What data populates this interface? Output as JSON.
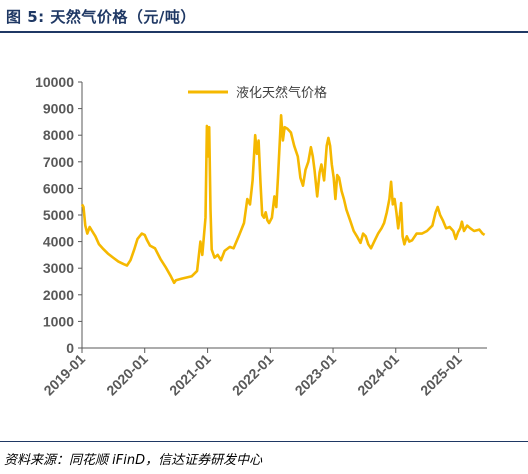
{
  "figure": {
    "title": "图 5:  天然气价格（元/吨）",
    "source": "资料来源：同花顺 iFinD，信达证券研发中心"
  },
  "chart_data": {
    "type": "line",
    "ylim": [
      0,
      10000
    ],
    "yticks": [
      0,
      1000,
      2000,
      3000,
      4000,
      5000,
      6000,
      7000,
      8000,
      9000,
      10000
    ],
    "xticks": [
      "2019-01",
      "2020-01",
      "2021-01",
      "2022-01",
      "2023-01",
      "2024-01",
      "2025-01"
    ],
    "xlim": [
      "2019-01-01",
      "2025-06-15"
    ],
    "grid": false,
    "legend_position": "top-center",
    "line_color": "#f5b800",
    "series": [
      {
        "name": "液化天然气价格",
        "points": [
          [
            "2019-01-01",
            5400
          ],
          [
            "2019-01-10",
            5300
          ],
          [
            "2019-01-20",
            4600
          ],
          [
            "2019-02-01",
            4300
          ],
          [
            "2019-02-15",
            4550
          ],
          [
            "2019-03-01",
            4400
          ],
          [
            "2019-03-20",
            4200
          ],
          [
            "2019-04-10",
            3900
          ],
          [
            "2019-05-01",
            3750
          ],
          [
            "2019-06-01",
            3550
          ],
          [
            "2019-07-01",
            3400
          ],
          [
            "2019-08-01",
            3250
          ],
          [
            "2019-09-01",
            3150
          ],
          [
            "2019-09-20",
            3100
          ],
          [
            "2019-10-10",
            3300
          ],
          [
            "2019-11-01",
            3700
          ],
          [
            "2019-11-20",
            4100
          ],
          [
            "2019-12-15",
            4300
          ],
          [
            "2020-01-01",
            4250
          ],
          [
            "2020-01-15",
            4050
          ],
          [
            "2020-02-01",
            3850
          ],
          [
            "2020-03-01",
            3750
          ],
          [
            "2020-04-01",
            3350
          ],
          [
            "2020-05-01",
            3050
          ],
          [
            "2020-06-01",
            2700
          ],
          [
            "2020-06-20",
            2450
          ],
          [
            "2020-07-01",
            2550
          ],
          [
            "2020-08-01",
            2600
          ],
          [
            "2020-09-01",
            2650
          ],
          [
            "2020-10-01",
            2700
          ],
          [
            "2020-11-01",
            2900
          ],
          [
            "2020-11-20",
            4000
          ],
          [
            "2020-12-01",
            3500
          ],
          [
            "2020-12-20",
            4900
          ],
          [
            "2020-12-28",
            8350
          ],
          [
            "2021-01-03",
            7200
          ],
          [
            "2021-01-10",
            8300
          ],
          [
            "2021-01-18",
            5200
          ],
          [
            "2021-01-25",
            3700
          ],
          [
            "2021-02-10",
            3400
          ],
          [
            "2021-03-01",
            3500
          ],
          [
            "2021-03-20",
            3300
          ],
          [
            "2021-04-10",
            3650
          ],
          [
            "2021-05-10",
            3800
          ],
          [
            "2021-06-01",
            3750
          ],
          [
            "2021-07-01",
            4200
          ],
          [
            "2021-08-01",
            4700
          ],
          [
            "2021-08-20",
            5600
          ],
          [
            "2021-09-05",
            5400
          ],
          [
            "2021-09-20",
            6300
          ],
          [
            "2021-10-05",
            8000
          ],
          [
            "2021-10-15",
            7300
          ],
          [
            "2021-10-25",
            7800
          ],
          [
            "2021-11-05",
            6200
          ],
          [
            "2021-11-15",
            5000
          ],
          [
            "2021-11-25",
            4900
          ],
          [
            "2021-12-05",
            5100
          ],
          [
            "2021-12-15",
            4800
          ],
          [
            "2021-12-25",
            4700
          ],
          [
            "2022-01-10",
            4900
          ],
          [
            "2022-01-25",
            5700
          ],
          [
            "2022-02-05",
            5300
          ],
          [
            "2022-02-15",
            6500
          ],
          [
            "2022-03-05",
            8750
          ],
          [
            "2022-03-15",
            7800
          ],
          [
            "2022-03-25",
            8300
          ],
          [
            "2022-04-10",
            8250
          ],
          [
            "2022-05-01",
            8100
          ],
          [
            "2022-05-20",
            7600
          ],
          [
            "2022-06-10",
            7200
          ],
          [
            "2022-06-25",
            6400
          ],
          [
            "2022-07-10",
            6100
          ],
          [
            "2022-07-25",
            6700
          ],
          [
            "2022-08-10",
            7000
          ],
          [
            "2022-08-25",
            7550
          ],
          [
            "2022-09-05",
            7200
          ],
          [
            "2022-09-15",
            6700
          ],
          [
            "2022-10-01",
            5700
          ],
          [
            "2022-10-15",
            6600
          ],
          [
            "2022-10-25",
            6900
          ],
          [
            "2022-11-10",
            6300
          ],
          [
            "2022-11-25",
            7600
          ],
          [
            "2022-12-05",
            7900
          ],
          [
            "2022-12-15",
            7600
          ],
          [
            "2022-12-25",
            6900
          ],
          [
            "2023-01-05",
            6400
          ],
          [
            "2023-01-15",
            5600
          ],
          [
            "2023-01-25",
            6500
          ],
          [
            "2023-02-05",
            6400
          ],
          [
            "2023-02-20",
            5900
          ],
          [
            "2023-03-05",
            5600
          ],
          [
            "2023-03-20",
            5200
          ],
          [
            "2023-04-10",
            4800
          ],
          [
            "2023-05-01",
            4400
          ],
          [
            "2023-05-20",
            4200
          ],
          [
            "2023-06-10",
            3950
          ],
          [
            "2023-06-25",
            4300
          ],
          [
            "2023-07-10",
            4200
          ],
          [
            "2023-07-25",
            3900
          ],
          [
            "2023-08-10",
            3750
          ],
          [
            "2023-09-01",
            4050
          ],
          [
            "2023-09-20",
            4300
          ],
          [
            "2023-10-10",
            4500
          ],
          [
            "2023-10-25",
            4700
          ],
          [
            "2023-11-10",
            5100
          ],
          [
            "2023-11-25",
            5600
          ],
          [
            "2023-12-05",
            6250
          ],
          [
            "2023-12-15",
            5400
          ],
          [
            "2023-12-25",
            5600
          ],
          [
            "2024-01-05",
            5100
          ],
          [
            "2024-01-15",
            4500
          ],
          [
            "2024-01-25",
            5000
          ],
          [
            "2024-02-01",
            5450
          ],
          [
            "2024-02-10",
            4200
          ],
          [
            "2024-02-20",
            3900
          ],
          [
            "2024-03-05",
            4200
          ],
          [
            "2024-03-20",
            4000
          ],
          [
            "2024-04-05",
            4050
          ],
          [
            "2024-05-01",
            4300
          ],
          [
            "2024-06-01",
            4300
          ],
          [
            "2024-07-01",
            4400
          ],
          [
            "2024-08-01",
            4600
          ],
          [
            "2024-08-20",
            5100
          ],
          [
            "2024-09-01",
            5300
          ],
          [
            "2024-09-15",
            5000
          ],
          [
            "2024-10-01",
            4800
          ],
          [
            "2024-10-20",
            4500
          ],
          [
            "2024-11-10",
            4550
          ],
          [
            "2024-12-01",
            4400
          ],
          [
            "2024-12-15",
            4100
          ],
          [
            "2024-12-28",
            4350
          ],
          [
            "2025-01-10",
            4500
          ],
          [
            "2025-01-20",
            4750
          ],
          [
            "2025-02-01",
            4400
          ],
          [
            "2025-02-20",
            4600
          ],
          [
            "2025-03-10",
            4500
          ],
          [
            "2025-04-01",
            4400
          ],
          [
            "2025-05-01",
            4450
          ],
          [
            "2025-05-20",
            4300
          ],
          [
            "2025-06-01",
            4250
          ]
        ]
      }
    ]
  }
}
